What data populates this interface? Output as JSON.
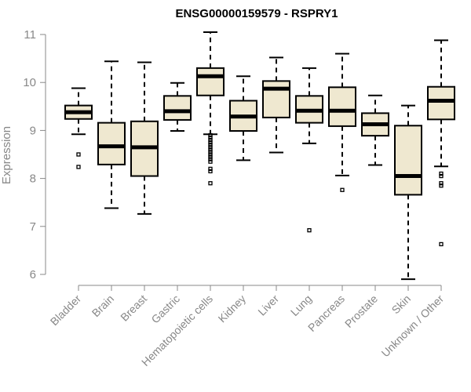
{
  "chart_data": {
    "type": "boxplot",
    "title": "ENSG00000159579 - RSPRY1",
    "ylabel": "Expression",
    "xlabel": "",
    "ylim": [
      5.8,
      11.1
    ],
    "yticks": [
      6,
      7,
      8,
      9,
      10,
      11
    ],
    "grid": false,
    "colors": {
      "box_fill": "#efe8d0",
      "stroke": "#000000",
      "axis": "#888888"
    },
    "categories": [
      "Bladder",
      "Brain",
      "Breast",
      "Gastric",
      "Hematopoietic cells",
      "Kidney",
      "Liver",
      "Lung",
      "Pancreas",
      "Prostate",
      "Skin",
      "Unknown / Other"
    ],
    "boxes": [
      {
        "whislo": 8.92,
        "q1": 9.24,
        "med": 9.38,
        "q3": 9.52,
        "whishi": 9.88,
        "fliers": [
          8.5,
          8.24
        ]
      },
      {
        "whislo": 7.38,
        "q1": 8.29,
        "med": 8.67,
        "q3": 9.16,
        "whishi": 10.44,
        "fliers": []
      },
      {
        "whislo": 7.26,
        "q1": 8.05,
        "med": 8.65,
        "q3": 9.19,
        "whishi": 10.42,
        "fliers": []
      },
      {
        "whislo": 8.99,
        "q1": 9.22,
        "med": 9.4,
        "q3": 9.72,
        "whishi": 9.99,
        "fliers": []
      },
      {
        "whislo": 8.92,
        "q1": 9.73,
        "med": 10.13,
        "q3": 10.3,
        "whishi": 11.05,
        "fliers": [
          8.9,
          8.85,
          8.8,
          8.75,
          8.7,
          8.65,
          8.6,
          8.55,
          8.5,
          8.45,
          8.4,
          8.35,
          8.2,
          8.15,
          7.9
        ]
      },
      {
        "whislo": 8.38,
        "q1": 8.99,
        "med": 9.29,
        "q3": 9.62,
        "whishi": 10.13,
        "fliers": []
      },
      {
        "whislo": 8.54,
        "q1": 9.27,
        "med": 9.87,
        "q3": 10.03,
        "whishi": 10.52,
        "fliers": []
      },
      {
        "whislo": 8.73,
        "q1": 9.16,
        "med": 9.41,
        "q3": 9.72,
        "whishi": 10.3,
        "fliers": [
          6.92
        ]
      },
      {
        "whislo": 8.06,
        "q1": 9.09,
        "med": 9.41,
        "q3": 9.9,
        "whishi": 10.6,
        "fliers": [
          7.76
        ]
      },
      {
        "whislo": 8.28,
        "q1": 8.89,
        "med": 9.13,
        "q3": 9.36,
        "whishi": 9.73,
        "fliers": []
      },
      {
        "whislo": 5.9,
        "q1": 7.66,
        "med": 8.05,
        "q3": 9.1,
        "whishi": 9.52,
        "fliers": []
      },
      {
        "whislo": 8.25,
        "q1": 9.23,
        "med": 9.62,
        "q3": 9.91,
        "whishi": 10.88,
        "fliers": [
          8.1,
          8.05,
          7.9,
          7.85,
          6.63
        ]
      }
    ]
  }
}
